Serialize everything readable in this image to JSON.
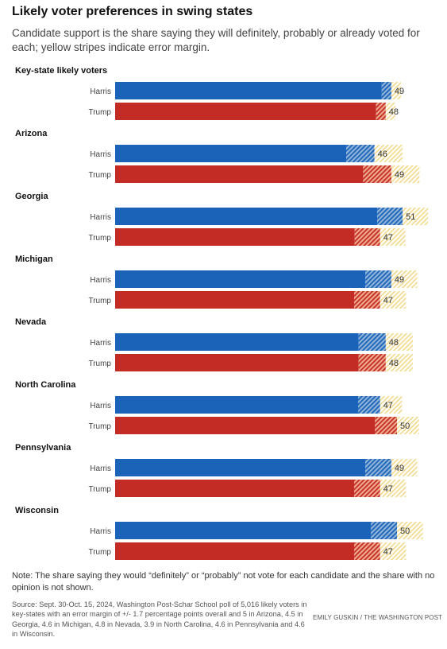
{
  "header": {
    "title": "Likely voter preferences in swing states",
    "subtitle": "Candidate support is the share saying they will definitely, probably or already voted for each; yellow stripes indicate error margin."
  },
  "footer": {
    "note": "Note: The share saying they would “definitely” or “probably” not vote for each candidate and the share with no opinion is not shown.",
    "source": "Source: Sept. 30-Oct. 15, 2024, Washington Post-Schar School poll of 5,016 likely voters in key-states with an error margin of +/- 1.7 percentage points overall and 5 in Arizona, 4.5 in Georgia, 4.6 in Michigan, 4.8 in Nevada, 3.9 in North Carolina, 4.6 in Pennsylvania and 4.6 in Wisconsin.",
    "credit": "EMILY GUSKIN / THE WASHINGTON POST"
  },
  "colors": {
    "harris": "#1a63b8",
    "trump": "#c22c25",
    "error_margin": "#f1d98a"
  },
  "chart_data": {
    "type": "bar",
    "orientation": "horizontal",
    "series_names": [
      "Harris",
      "Trump"
    ],
    "groups": [
      {
        "name": "Key-state likely voters",
        "margin": 1.7,
        "values": [
          49,
          48
        ]
      },
      {
        "name": "Arizona",
        "margin": 5,
        "values": [
          46,
          49
        ]
      },
      {
        "name": "Georgia",
        "margin": 4.5,
        "values": [
          51,
          47
        ]
      },
      {
        "name": "Michigan",
        "margin": 4.6,
        "values": [
          49,
          47
        ]
      },
      {
        "name": "Nevada",
        "margin": 4.8,
        "values": [
          48,
          48
        ]
      },
      {
        "name": "North Carolina",
        "margin": 3.9,
        "values": [
          47,
          50
        ]
      },
      {
        "name": "Pennsylvania",
        "margin": 4.6,
        "values": [
          49,
          47
        ]
      },
      {
        "name": "Wisconsin",
        "margin": 4.6,
        "values": [
          50,
          47
        ]
      }
    ],
    "xlim": [
      0,
      60
    ],
    "grid": false,
    "legend": "none"
  }
}
